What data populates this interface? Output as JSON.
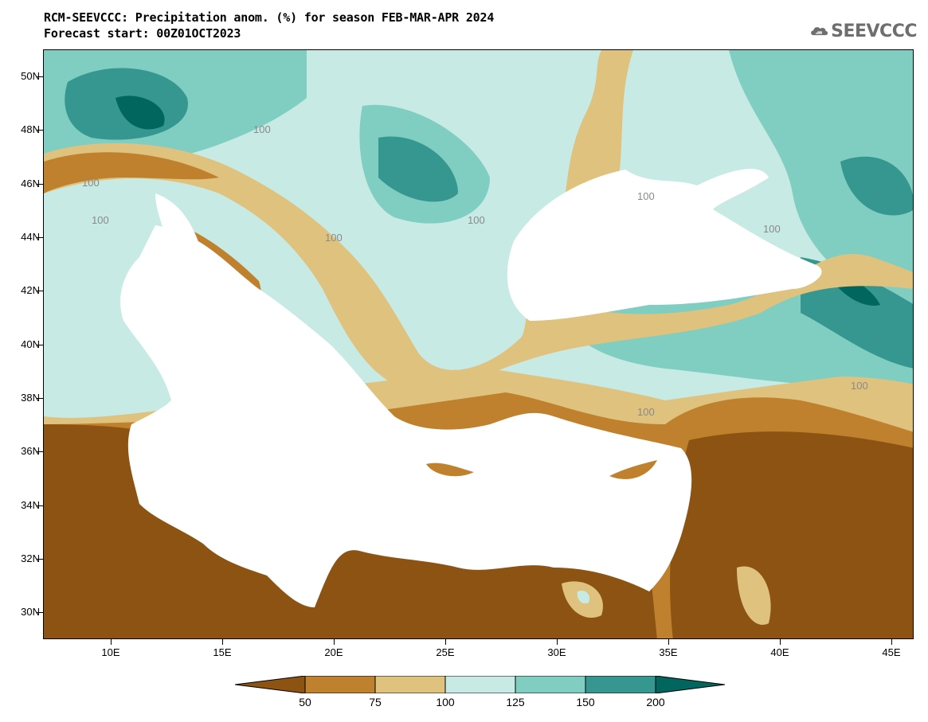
{
  "header": {
    "title_line1": "RCM-SEEVCCC: Precipitation anom. (%) for season FEB-MAR-APR 2024",
    "title_line2": "Forecast start: 00Z01OCT2023",
    "logo_text": "SEEVCCC",
    "logo_icon": "cloud-icon"
  },
  "map": {
    "lat_labels": [
      "50N",
      "48N",
      "46N",
      "44N",
      "42N",
      "40N",
      "38N",
      "36N",
      "34N",
      "32N",
      "30N"
    ],
    "lon_labels": [
      "10E",
      "15E",
      "20E",
      "25E",
      "30E",
      "35E",
      "40E",
      "45E"
    ],
    "contour_value_label": "100",
    "colors": {
      "dark_brown": "#8c5313",
      "brown": "#bf812d",
      "light_brown": "#dfc27d",
      "pale_teal": "#c7eae5",
      "mid_teal": "#80cdc1",
      "teal": "#35978f",
      "dark_teal": "#01665e",
      "sea": "#ffffff"
    }
  },
  "colorbar": {
    "labels": [
      "50",
      "75",
      "100",
      "125",
      "150",
      "200"
    ],
    "colors": [
      "#8c5313",
      "#bf812d",
      "#dfc27d",
      "#c7eae5",
      "#80cdc1",
      "#35978f",
      "#01665e"
    ]
  }
}
